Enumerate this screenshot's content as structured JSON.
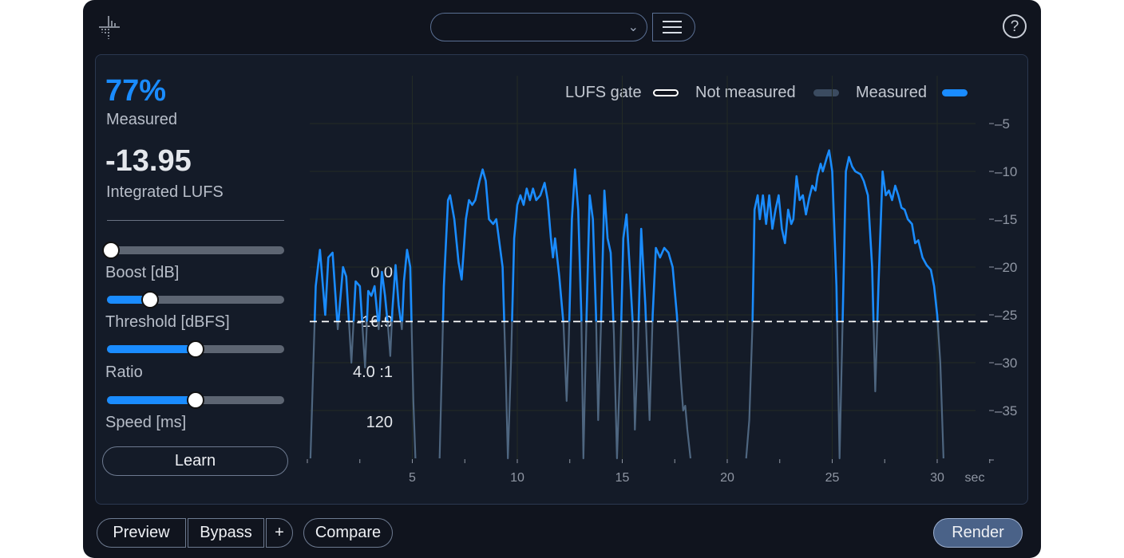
{
  "header": {
    "preset_value": "",
    "preset_icon": "chevron-down-icon",
    "menu_icon": "hamburger-icon",
    "help_label": "?"
  },
  "stats": {
    "measured_pct": "77%",
    "measured_label": "Measured",
    "integrated_value": "-13.95",
    "integrated_label": "Integrated LUFS"
  },
  "controls": [
    {
      "label": "Boost [dB]",
      "value": "0.0",
      "level": 0.0
    },
    {
      "label": "Threshold [dBFS]",
      "value": "-16.9",
      "level": 0.245
    },
    {
      "label": "Ratio",
      "value": "4.0 :1",
      "level": 0.5
    },
    {
      "label": "Speed [ms]",
      "value": "120",
      "level": 0.5
    }
  ],
  "learn_label": "Learn",
  "footer": {
    "preview": "Preview",
    "bypass": "Bypass",
    "plus": "+",
    "compare": "Compare",
    "render": "Render"
  },
  "colors": {
    "accent": "#1a8cff",
    "not_measured": "#4e6680",
    "gate": "#ffffff",
    "background": "#10141e"
  },
  "chart_data": {
    "type": "line",
    "legend": [
      {
        "name": "LUFS gate"
      },
      {
        "name": "Not measured"
      },
      {
        "name": "Measured"
      }
    ],
    "legend_placement": "top-right",
    "xlabel": "sec",
    "xlim": [
      0,
      32.5
    ],
    "ylim": [
      -40,
      -3
    ],
    "xticks": [
      5,
      10,
      15,
      20,
      25,
      30
    ],
    "yticks": [
      -5,
      -10,
      -15,
      -20,
      -25,
      -30,
      -35
    ],
    "grid": true,
    "gate_lufs": -25.7,
    "segments": [
      [
        [
          0.15,
          -40
        ],
        [
          0.4,
          -22
        ],
        [
          0.6,
          -18.2
        ],
        [
          0.85,
          -25
        ],
        [
          1.0,
          -19
        ],
        [
          1.2,
          -18.5
        ],
        [
          1.45,
          -26.5
        ],
        [
          1.7,
          -20
        ],
        [
          1.85,
          -21
        ],
        [
          2.1,
          -30
        ],
        [
          2.3,
          -21.5
        ],
        [
          2.5,
          -22
        ],
        [
          2.75,
          -30.5
        ],
        [
          2.9,
          -22.5
        ],
        [
          3.05,
          -23
        ],
        [
          3.2,
          -22
        ],
        [
          3.4,
          -26.5
        ],
        [
          3.55,
          -20.5
        ],
        [
          3.7,
          -23
        ],
        [
          3.85,
          -26.5
        ],
        [
          3.95,
          -29.3
        ],
        [
          4.05,
          -24.5
        ],
        [
          4.2,
          -19.8
        ],
        [
          4.35,
          -24
        ],
        [
          4.5,
          -26.5
        ],
        [
          4.6,
          -21.5
        ],
        [
          4.75,
          -18.2
        ],
        [
          4.9,
          -20
        ],
        [
          5.05,
          -34
        ],
        [
          5.15,
          -40
        ]
      ],
      [
        [
          6.3,
          -40
        ],
        [
          6.5,
          -22
        ],
        [
          6.7,
          -13
        ],
        [
          6.8,
          -12.5
        ],
        [
          7.0,
          -15
        ],
        [
          7.2,
          -19.5
        ],
        [
          7.35,
          -21.3
        ],
        [
          7.55,
          -15
        ],
        [
          7.7,
          -13
        ],
        [
          7.85,
          -13.5
        ],
        [
          8.0,
          -13
        ],
        [
          8.2,
          -11
        ],
        [
          8.35,
          -9.8
        ],
        [
          8.5,
          -11
        ],
        [
          8.65,
          -15
        ],
        [
          8.85,
          -15.5
        ],
        [
          9.0,
          -15
        ],
        [
          9.3,
          -20
        ],
        [
          9.45,
          -31
        ],
        [
          9.55,
          -40
        ],
        [
          9.7,
          -30
        ],
        [
          9.85,
          -17
        ],
        [
          10.0,
          -13.5
        ],
        [
          10.15,
          -12.5
        ],
        [
          10.3,
          -13.5
        ],
        [
          10.45,
          -11.8
        ],
        [
          10.6,
          -13
        ],
        [
          10.75,
          -11.8
        ],
        [
          10.9,
          -13
        ],
        [
          11.1,
          -12.5
        ],
        [
          11.3,
          -11.2
        ],
        [
          11.45,
          -13
        ],
        [
          11.6,
          -17
        ],
        [
          11.7,
          -19
        ],
        [
          11.8,
          -17
        ],
        [
          12.0,
          -21
        ],
        [
          12.2,
          -26
        ],
        [
          12.35,
          -34
        ],
        [
          12.45,
          -28
        ],
        [
          12.6,
          -15
        ],
        [
          12.75,
          -9.8
        ],
        [
          12.9,
          -14
        ],
        [
          13.05,
          -25
        ],
        [
          13.15,
          -40
        ],
        [
          13.3,
          -25
        ],
        [
          13.45,
          -12.5
        ],
        [
          13.6,
          -15
        ],
        [
          13.75,
          -25
        ],
        [
          13.85,
          -36
        ],
        [
          14.0,
          -25
        ],
        [
          14.15,
          -12
        ],
        [
          14.3,
          -17
        ],
        [
          14.45,
          -18.5
        ],
        [
          14.6,
          -27
        ],
        [
          14.75,
          -40
        ],
        [
          14.9,
          -30
        ],
        [
          15.05,
          -17
        ],
        [
          15.2,
          -14.5
        ],
        [
          15.35,
          -20
        ],
        [
          15.5,
          -26
        ],
        [
          15.6,
          -37
        ],
        [
          15.75,
          -28
        ],
        [
          15.9,
          -16
        ],
        [
          16.1,
          -24
        ],
        [
          16.3,
          -36
        ],
        [
          16.45,
          -25
        ],
        [
          16.6,
          -18
        ],
        [
          16.8,
          -19
        ],
        [
          17.0,
          -18
        ],
        [
          17.2,
          -18.5
        ],
        [
          17.4,
          -20
        ],
        [
          17.6,
          -25
        ],
        [
          17.8,
          -32
        ],
        [
          17.9,
          -35
        ],
        [
          18.0,
          -34.5
        ],
        [
          18.1,
          -37
        ],
        [
          18.25,
          -40
        ]
      ],
      [
        [
          20.9,
          -40
        ],
        [
          21.05,
          -36
        ],
        [
          21.2,
          -26
        ],
        [
          21.3,
          -14
        ],
        [
          21.45,
          -12.5
        ],
        [
          21.55,
          -15
        ],
        [
          21.7,
          -12.5
        ],
        [
          21.85,
          -15.5
        ],
        [
          22.0,
          -12.5
        ],
        [
          22.15,
          -16
        ],
        [
          22.3,
          -14
        ],
        [
          22.45,
          -12.5
        ],
        [
          22.6,
          -16
        ],
        [
          22.75,
          -17.5
        ],
        [
          22.9,
          -14
        ],
        [
          23.05,
          -15.5
        ],
        [
          23.15,
          -15
        ],
        [
          23.3,
          -10.5
        ],
        [
          23.45,
          -13
        ],
        [
          23.6,
          -12.5
        ],
        [
          23.75,
          -14.5
        ],
        [
          23.9,
          -12.8
        ],
        [
          24.05,
          -11.5
        ],
        [
          24.2,
          -12
        ],
        [
          24.3,
          -10.5
        ],
        [
          24.45,
          -9.2
        ],
        [
          24.55,
          -10
        ],
        [
          24.75,
          -8.5
        ],
        [
          24.85,
          -7.8
        ],
        [
          25.0,
          -10
        ],
        [
          25.2,
          -22
        ],
        [
          25.35,
          -40
        ],
        [
          25.5,
          -25
        ],
        [
          25.65,
          -10
        ],
        [
          25.8,
          -8.5
        ],
        [
          25.95,
          -9.5
        ],
        [
          26.1,
          -10
        ],
        [
          26.35,
          -10.3
        ],
        [
          26.5,
          -11
        ],
        [
          26.7,
          -12.5
        ],
        [
          26.9,
          -20
        ],
        [
          27.05,
          -33
        ],
        [
          27.2,
          -22
        ],
        [
          27.4,
          -10
        ],
        [
          27.55,
          -12.5
        ],
        [
          27.7,
          -12
        ],
        [
          27.85,
          -13
        ],
        [
          28.0,
          -11.5
        ],
        [
          28.15,
          -12.5
        ],
        [
          28.3,
          -13.8
        ],
        [
          28.45,
          -14
        ],
        [
          28.6,
          -15
        ],
        [
          28.8,
          -15.5
        ],
        [
          28.95,
          -17.5
        ],
        [
          29.1,
          -17.2
        ],
        [
          29.3,
          -19
        ],
        [
          29.5,
          -19.8
        ],
        [
          29.7,
          -20.3
        ],
        [
          29.85,
          -22
        ],
        [
          30.0,
          -25
        ],
        [
          30.15,
          -30
        ],
        [
          30.3,
          -40
        ]
      ]
    ]
  }
}
